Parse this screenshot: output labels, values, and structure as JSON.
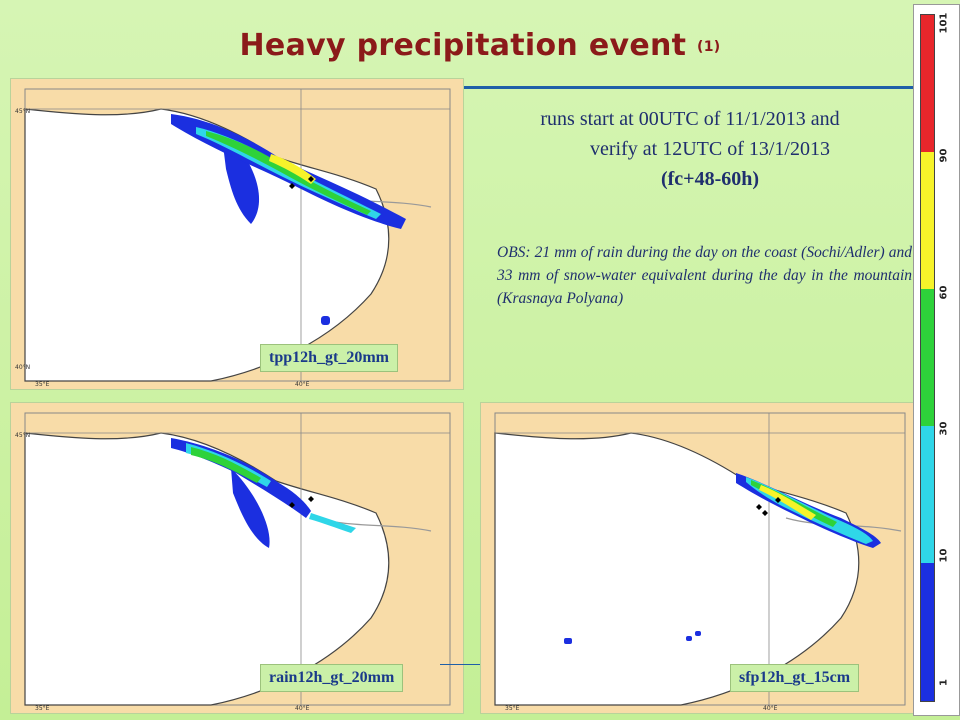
{
  "slide": {
    "title": "Heavy precipitation event",
    "title_suffix": "(1)",
    "runs_line1": "runs start at 00UTC of  11/1/2013 and",
    "runs_line2": "verify at 12UTC of 13/1/2013",
    "runs_line3": "(fc+48-60h)",
    "obs_text": "OBS: 21 mm of rain during the day on the coast (Sochi/Adler) and 33 mm of snow-water equivalent during the day in the mountain (Krasnaya Polyana)"
  },
  "maps": [
    {
      "label": "tpp12h_gt_20mm",
      "lon_ticks": [
        "35°E",
        "40°E"
      ],
      "lat_ticks": [
        "45°N",
        "40°N"
      ]
    },
    {
      "label": "rain12h_gt_20mm",
      "lon_ticks": [
        "35°E",
        "40°E"
      ],
      "lat_ticks": [
        "45°N",
        "40°N"
      ]
    },
    {
      "label": "sfp12h_gt_15cm",
      "lon_ticks": [
        "35°E",
        "40°E"
      ],
      "lat_ticks": [
        "45°N",
        "40°N"
      ]
    }
  ],
  "legend": {
    "ticks": [
      "101",
      "90",
      "60",
      "30",
      "10",
      "1"
    ],
    "colors": [
      "#e8262b",
      "#f7f32a",
      "#2ed23a",
      "#2fd6e8",
      "#1b2fe0"
    ]
  },
  "colors": {
    "land": "#f8dca8",
    "sea": "#ffffff",
    "title": "#8b1a1a",
    "text": "#1f2f6e"
  }
}
